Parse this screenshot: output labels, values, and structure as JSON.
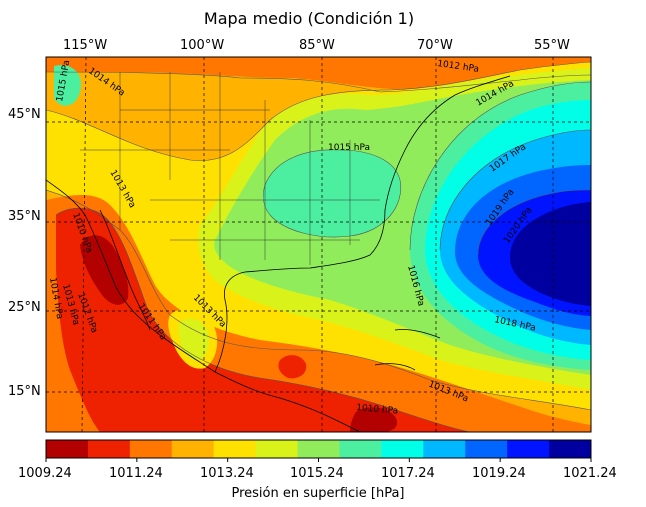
{
  "title": "Mapa medio (Condición 1)",
  "lon_labels": [
    "115°W",
    "100°W",
    "85°W",
    "70°W",
    "55°W"
  ],
  "lat_labels": [
    "45°N",
    "35°N",
    "25°N",
    "15°N"
  ],
  "contour_labels": [
    "1015 hPa",
    "1014 hPa",
    "1012 hPa",
    "1014 hPa",
    "1015 hPa",
    "1017 hPa",
    "1013 hPa",
    "1019 hPa",
    "1020 hPa",
    "1010 hPa",
    "1016 hPa",
    "1014 hPa",
    "1013 hPa",
    "1012 hPa",
    "1011 hPa",
    "1013 hPa",
    "1018 hPa",
    "1013 hPa",
    "1010 hPa"
  ],
  "colorbar": {
    "ticks": [
      "1009.24",
      "1011.24",
      "1013.24",
      "1015.24",
      "1017.24",
      "1019.24",
      "1021.24"
    ],
    "label": "Presión en superficie [hPa]",
    "colors": [
      "#b30000",
      "#ee2200",
      "#ff7700",
      "#ffb300",
      "#ffe100",
      "#d9f21a",
      "#90ec5a",
      "#4cefa0",
      "#00ffe6",
      "#00b8ff",
      "#0066ff",
      "#0014ff",
      "#0000a0"
    ]
  }
}
